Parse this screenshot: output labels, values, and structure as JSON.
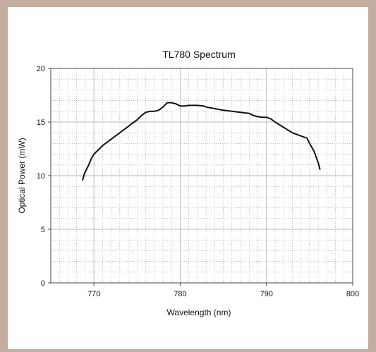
{
  "chart_data": {
    "type": "line",
    "title": "TL780 Spectrum",
    "xlabel": "Wavelength (nm)",
    "ylabel": "Optical Power (mW)",
    "xlim": [
      765,
      800
    ],
    "ylim": [
      0,
      20
    ],
    "xticks": [
      770,
      780,
      790,
      800
    ],
    "yticks": [
      0,
      5,
      10,
      15,
      20
    ],
    "x_minor_step": 1,
    "y_minor_step": 1,
    "grid": true,
    "line_color": "#111111",
    "series": [
      {
        "x": [
          768.7,
          768.9,
          769.2,
          769.4,
          769.7,
          770.0,
          770.5,
          771.0,
          772.0,
          773.0,
          774.0,
          774.3,
          775.0,
          775.5,
          776.0,
          776.5,
          777.0,
          777.5,
          778.0,
          778.5,
          779.0,
          779.5,
          780.0,
          780.5,
          781.0,
          782.0,
          782.7,
          783.0,
          784.0,
          785.0,
          786.0,
          787.0,
          788.0,
          788.5,
          789.0,
          789.5,
          790.0,
          790.5,
          791.0,
          792.0,
          793.0,
          794.0,
          794.7,
          795.0,
          795.5,
          796.0,
          796.2
        ],
        "y": [
          9.6,
          10.2,
          10.7,
          11.0,
          11.6,
          12.0,
          12.4,
          12.8,
          13.4,
          14.0,
          14.6,
          14.8,
          15.2,
          15.6,
          15.9,
          16.0,
          16.0,
          16.1,
          16.4,
          16.8,
          16.8,
          16.7,
          16.5,
          16.5,
          16.55,
          16.55,
          16.5,
          16.4,
          16.25,
          16.1,
          16.0,
          15.9,
          15.8,
          15.6,
          15.5,
          15.45,
          15.45,
          15.3,
          15.0,
          14.5,
          14.0,
          13.7,
          13.5,
          13.0,
          12.3,
          11.2,
          10.6
        ]
      }
    ]
  }
}
